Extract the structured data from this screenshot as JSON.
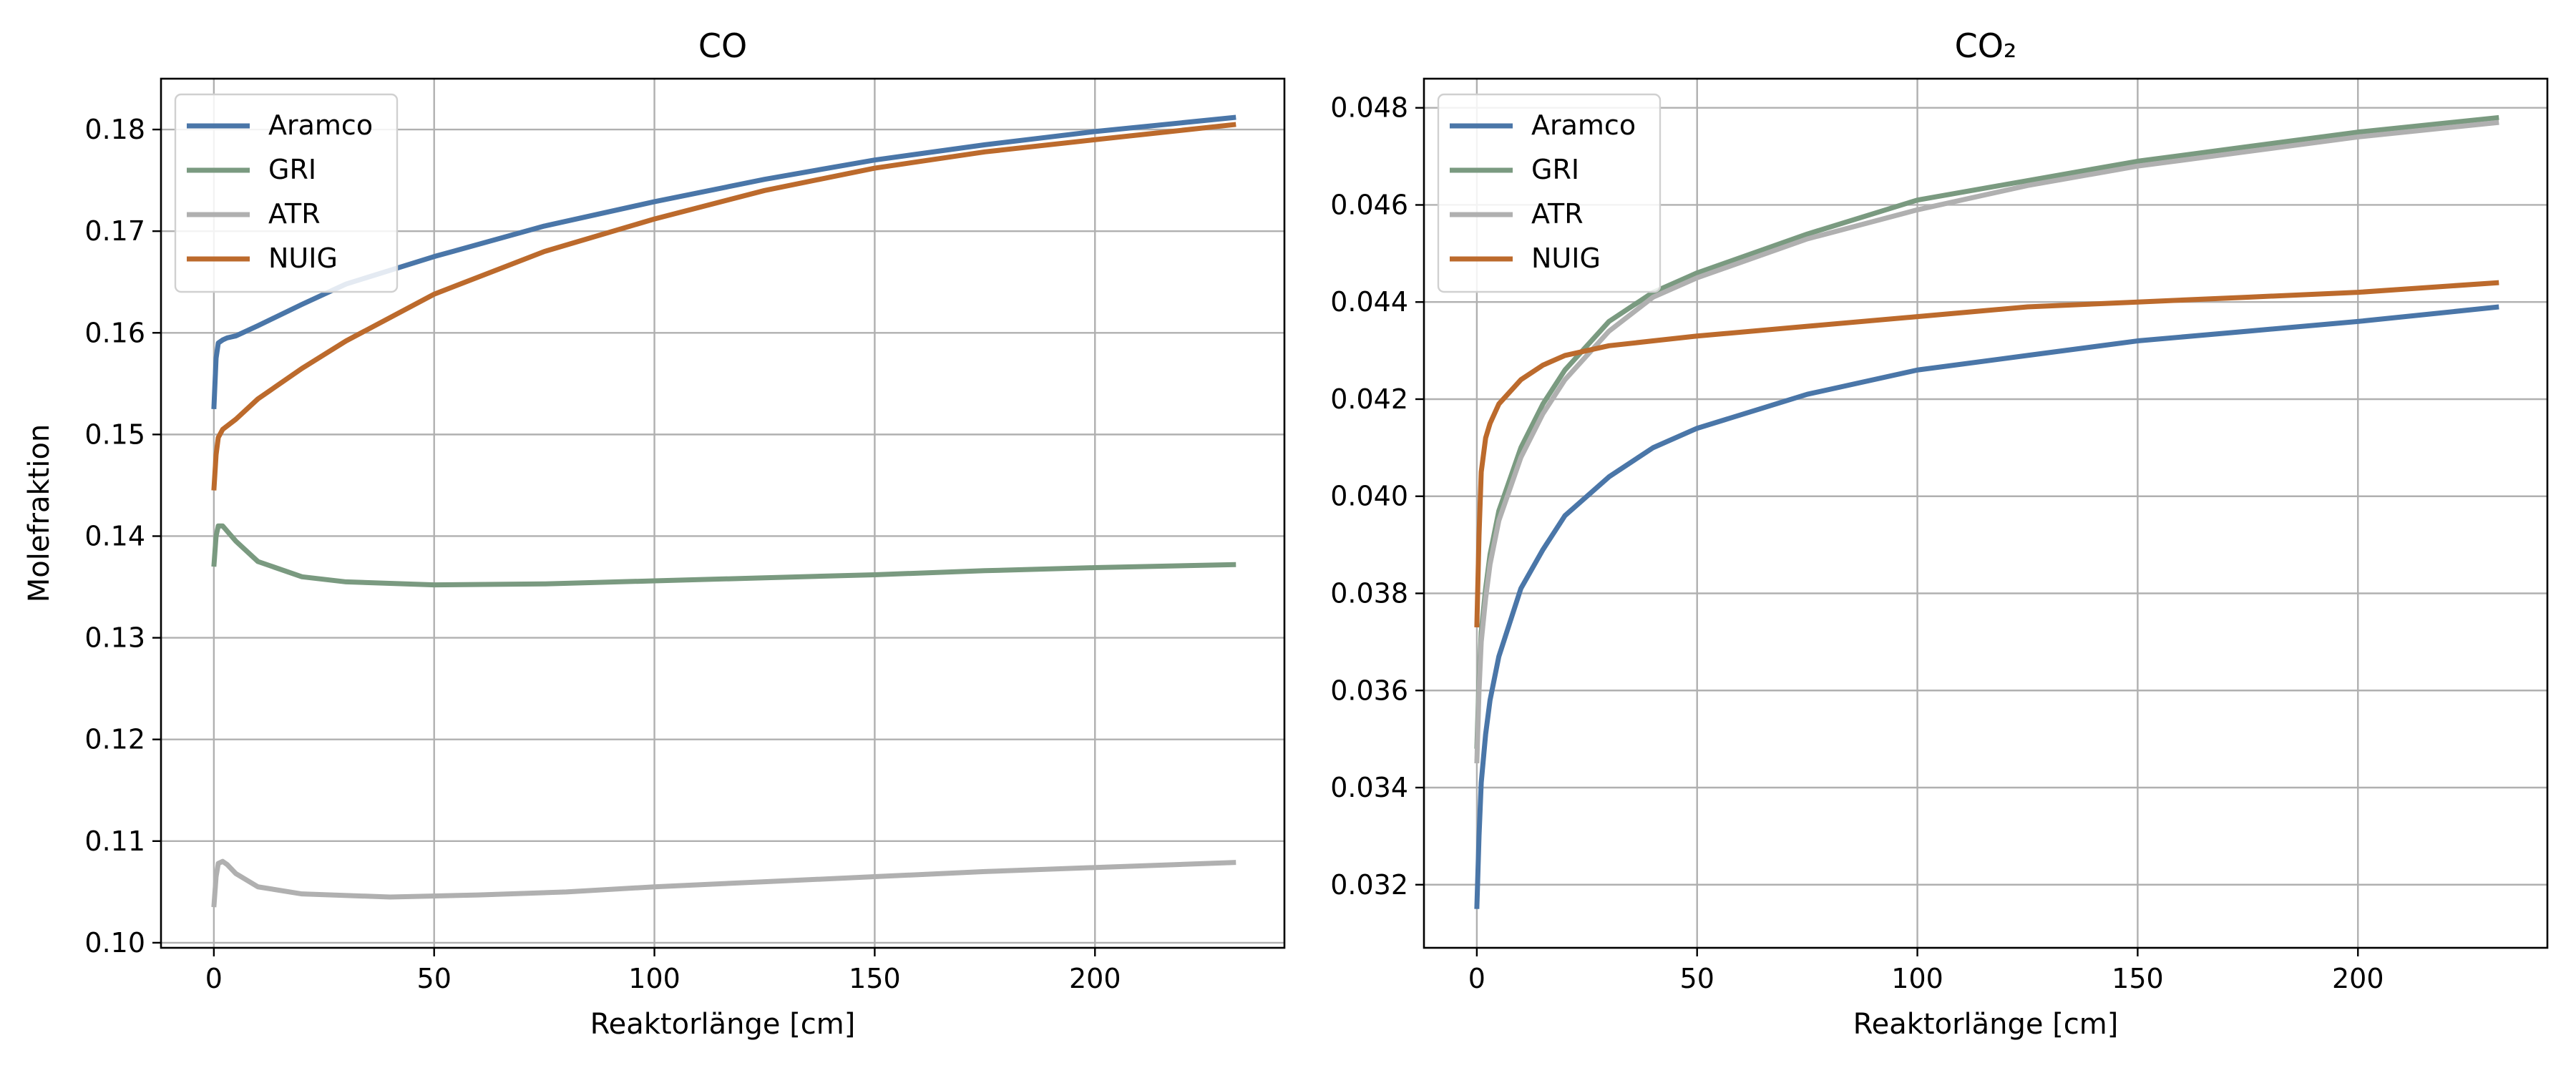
{
  "chart_data": [
    {
      "type": "line",
      "title": "CO",
      "xlabel": "Reaktorlänge [cm]",
      "ylabel": "Molefraktion",
      "xlim": [
        -12,
        243
      ],
      "ylim": [
        0.0995,
        0.185
      ],
      "xticks": [
        0,
        50,
        100,
        150,
        200
      ],
      "yticks": [
        0.1,
        0.11,
        0.12,
        0.13,
        0.14,
        0.15,
        0.16,
        0.17,
        0.18
      ],
      "xtick_labels": [
        "0",
        "50",
        "100",
        "150",
        "200"
      ],
      "ytick_labels": [
        "0.10",
        "0.11",
        "0.12",
        "0.13",
        "0.14",
        "0.15",
        "0.16",
        "0.17",
        "0.18"
      ],
      "grid": true,
      "legend_position": "top-left",
      "series": [
        {
          "name": "Aramco",
          "color": "#4a76a8",
          "x": [
            0,
            0.5,
            1,
            2,
            3,
            5,
            10,
            20,
            30,
            50,
            75,
            100,
            125,
            150,
            175,
            200,
            232
          ],
          "y": [
            0.1525,
            0.1575,
            0.159,
            0.1593,
            0.1595,
            0.1597,
            0.1607,
            0.1628,
            0.1648,
            0.1675,
            0.1705,
            0.1729,
            0.1751,
            0.177,
            0.1785,
            0.1798,
            0.1812
          ]
        },
        {
          "name": "GRI",
          "color": "#7a9a80",
          "x": [
            0,
            0.5,
            1,
            2,
            3,
            5,
            10,
            20,
            30,
            50,
            75,
            100,
            125,
            150,
            175,
            200,
            232
          ],
          "y": [
            0.137,
            0.14,
            0.141,
            0.141,
            0.1405,
            0.1395,
            0.1375,
            0.136,
            0.1355,
            0.1352,
            0.1353,
            0.1356,
            0.1359,
            0.1362,
            0.1366,
            0.1369,
            0.1372
          ]
        },
        {
          "name": "ATR",
          "color": "#b0b0b0",
          "x": [
            0,
            0.5,
            1,
            2,
            3,
            5,
            10,
            20,
            40,
            60,
            80,
            100,
            125,
            150,
            175,
            200,
            232
          ],
          "y": [
            0.1035,
            0.1065,
            0.1078,
            0.108,
            0.1077,
            0.1068,
            0.1055,
            0.1048,
            0.1045,
            0.1047,
            0.105,
            0.1055,
            0.106,
            0.1065,
            0.107,
            0.1074,
            0.1079
          ]
        },
        {
          "name": "NUIG",
          "color": "#bc6a2c",
          "x": [
            0,
            0.5,
            1,
            2,
            5,
            10,
            20,
            30,
            50,
            75,
            100,
            125,
            150,
            175,
            200,
            232
          ],
          "y": [
            0.1445,
            0.148,
            0.1497,
            0.1505,
            0.1515,
            0.1535,
            0.1565,
            0.1592,
            0.1638,
            0.168,
            0.1712,
            0.174,
            0.1762,
            0.1778,
            0.179,
            0.1805
          ]
        }
      ]
    },
    {
      "type": "line",
      "title": "CO₂",
      "xlabel": "Reaktorlänge [cm]",
      "ylabel": "",
      "xlim": [
        -12,
        243
      ],
      "ylim": [
        0.0307,
        0.0486
      ],
      "xticks": [
        0,
        50,
        100,
        150,
        200
      ],
      "yticks": [
        0.032,
        0.034,
        0.036,
        0.038,
        0.04,
        0.042,
        0.044,
        0.046,
        0.048
      ],
      "xtick_labels": [
        "0",
        "50",
        "100",
        "150",
        "200"
      ],
      "ytick_labels": [
        "0.032",
        "0.034",
        "0.036",
        "0.038",
        "0.040",
        "0.042",
        "0.044",
        "0.046",
        "0.048"
      ],
      "grid": true,
      "legend_position": "top-left",
      "series": [
        {
          "name": "Aramco",
          "color": "#4a76a8",
          "x": [
            0,
            0.5,
            1,
            2,
            3,
            5,
            10,
            15,
            20,
            30,
            40,
            50,
            75,
            100,
            125,
            150,
            175,
            200,
            232
          ],
          "y": [
            0.0315,
            0.033,
            0.0341,
            0.0351,
            0.0358,
            0.0367,
            0.0381,
            0.0389,
            0.0396,
            0.0404,
            0.041,
            0.0414,
            0.0421,
            0.0426,
            0.0429,
            0.0432,
            0.0434,
            0.0436,
            0.0439
          ]
        },
        {
          "name": "GRI",
          "color": "#7a9a80",
          "x": [
            0,
            0.5,
            1,
            2,
            3,
            5,
            10,
            15,
            20,
            30,
            40,
            50,
            75,
            100,
            125,
            150,
            175,
            200,
            232
          ],
          "y": [
            0.0348,
            0.0362,
            0.0372,
            0.0381,
            0.0388,
            0.0397,
            0.041,
            0.0419,
            0.0426,
            0.0436,
            0.0442,
            0.0446,
            0.0454,
            0.0461,
            0.0465,
            0.0469,
            0.0472,
            0.0475,
            0.0478
          ]
        },
        {
          "name": "ATR",
          "color": "#b0b0b0",
          "x": [
            0,
            0.5,
            1,
            2,
            3,
            5,
            10,
            15,
            20,
            30,
            40,
            50,
            75,
            100,
            125,
            150,
            175,
            200,
            232
          ],
          "y": [
            0.0345,
            0.036,
            0.037,
            0.0379,
            0.0386,
            0.0395,
            0.0408,
            0.0417,
            0.0424,
            0.0434,
            0.0441,
            0.0445,
            0.0453,
            0.0459,
            0.0464,
            0.0468,
            0.0471,
            0.0474,
            0.0477
          ]
        },
        {
          "name": "NUIG",
          "color": "#bc6a2c",
          "x": [
            0,
            0.5,
            1,
            2,
            3,
            5,
            10,
            15,
            20,
            30,
            40,
            50,
            75,
            100,
            125,
            150,
            175,
            200,
            232
          ],
          "y": [
            0.0373,
            0.0392,
            0.0405,
            0.0412,
            0.0415,
            0.0419,
            0.0424,
            0.0427,
            0.0429,
            0.0431,
            0.0432,
            0.0433,
            0.0435,
            0.0437,
            0.0439,
            0.044,
            0.0441,
            0.0442,
            0.0444
          ]
        }
      ]
    }
  ]
}
